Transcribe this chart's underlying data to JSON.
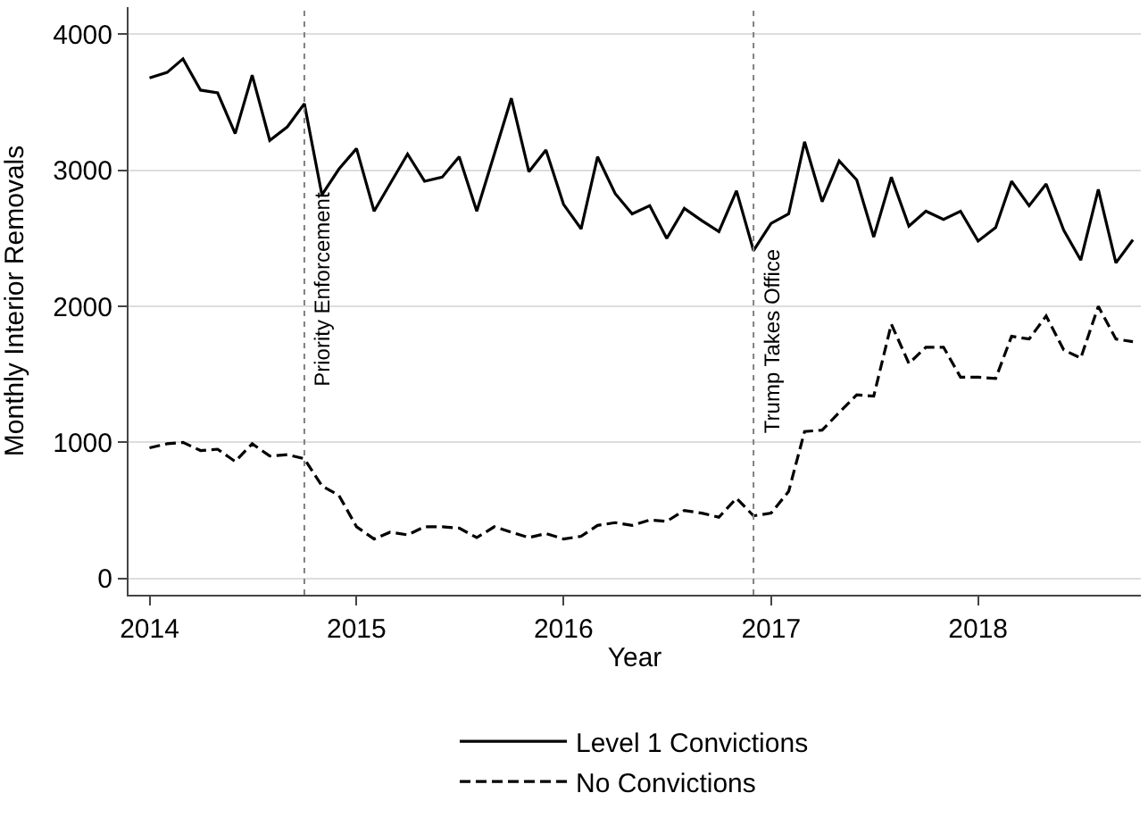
{
  "chart_data": {
    "type": "line",
    "xlabel": "Year",
    "ylabel": "Monthly Interior Removals",
    "x": [
      "2014-01",
      "2014-02",
      "2014-03",
      "2014-04",
      "2014-05",
      "2014-06",
      "2014-07",
      "2014-08",
      "2014-09",
      "2014-10",
      "2014-11",
      "2014-12",
      "2015-01",
      "2015-02",
      "2015-03",
      "2015-04",
      "2015-05",
      "2015-06",
      "2015-07",
      "2015-08",
      "2015-09",
      "2015-10",
      "2015-11",
      "2015-12",
      "2016-01",
      "2016-02",
      "2016-03",
      "2016-04",
      "2016-05",
      "2016-06",
      "2016-07",
      "2016-08",
      "2016-09",
      "2016-10",
      "2016-11",
      "2016-12",
      "2017-01",
      "2017-02",
      "2017-03",
      "2017-04",
      "2017-05",
      "2017-06",
      "2017-07",
      "2017-08",
      "2017-09",
      "2017-10",
      "2017-11",
      "2017-12",
      "2018-01",
      "2018-02",
      "2018-03",
      "2018-04",
      "2018-05",
      "2018-06",
      "2018-07",
      "2018-08",
      "2018-09",
      "2018-10"
    ],
    "series": [
      {
        "name": "Level 1 Convictions",
        "color": "#000000",
        "line_style": "solid",
        "values": [
          3680,
          3720,
          3820,
          3590,
          3570,
          3270,
          3700,
          3220,
          3320,
          3490,
          2820,
          3010,
          3160,
          2700,
          2900,
          3120,
          2920,
          2950,
          3100,
          2700,
          3120,
          3530,
          2990,
          3150,
          2750,
          2570,
          3100,
          2830,
          2680,
          2740,
          2500,
          2720,
          2630,
          2550,
          2850,
          2410,
          2610,
          2680,
          3210,
          2770,
          3070,
          2930,
          2510,
          2950,
          2590,
          2700,
          2640,
          2700,
          2480,
          2580,
          2920,
          2740,
          2900,
          2560,
          2340,
          2860,
          2320,
          2490
        ]
      },
      {
        "name": "No Convictions",
        "color": "#000000",
        "line_style": "dashed",
        "values": [
          960,
          990,
          1000,
          940,
          950,
          860,
          990,
          900,
          910,
          880,
          680,
          610,
          380,
          290,
          340,
          320,
          380,
          380,
          370,
          300,
          380,
          340,
          300,
          330,
          290,
          310,
          390,
          410,
          390,
          430,
          420,
          500,
          480,
          450,
          590,
          460,
          480,
          640,
          1080,
          1090,
          1220,
          1350,
          1340,
          1870,
          1580,
          1700,
          1700,
          1480,
          1480,
          1470,
          1780,
          1760,
          1930,
          1680,
          1620,
          2000,
          1760,
          1740
        ]
      }
    ],
    "xlim": [
      "2013-11-25",
      "2018-10-15"
    ],
    "xticks": [
      {
        "value": "2014",
        "label": "2014"
      },
      {
        "value": "2015",
        "label": "2015"
      },
      {
        "value": "2016",
        "label": "2016"
      },
      {
        "value": "2017",
        "label": "2017"
      },
      {
        "value": "2018",
        "label": "2018"
      }
    ],
    "ylim": [
      -120,
      4200
    ],
    "yticks": [
      0,
      1000,
      2000,
      3000,
      4000
    ],
    "ref_lines": [
      {
        "axis": "x",
        "value": "2014-10",
        "label": "Priority Enforcement",
        "color": "#808080",
        "line_style": "dotted"
      },
      {
        "axis": "x",
        "value": "2016-12",
        "label": "Trump Takes Office",
        "color": "#808080",
        "line_style": "dotted"
      }
    ],
    "grid": "y",
    "legend": "bottom",
    "marker": "none"
  }
}
